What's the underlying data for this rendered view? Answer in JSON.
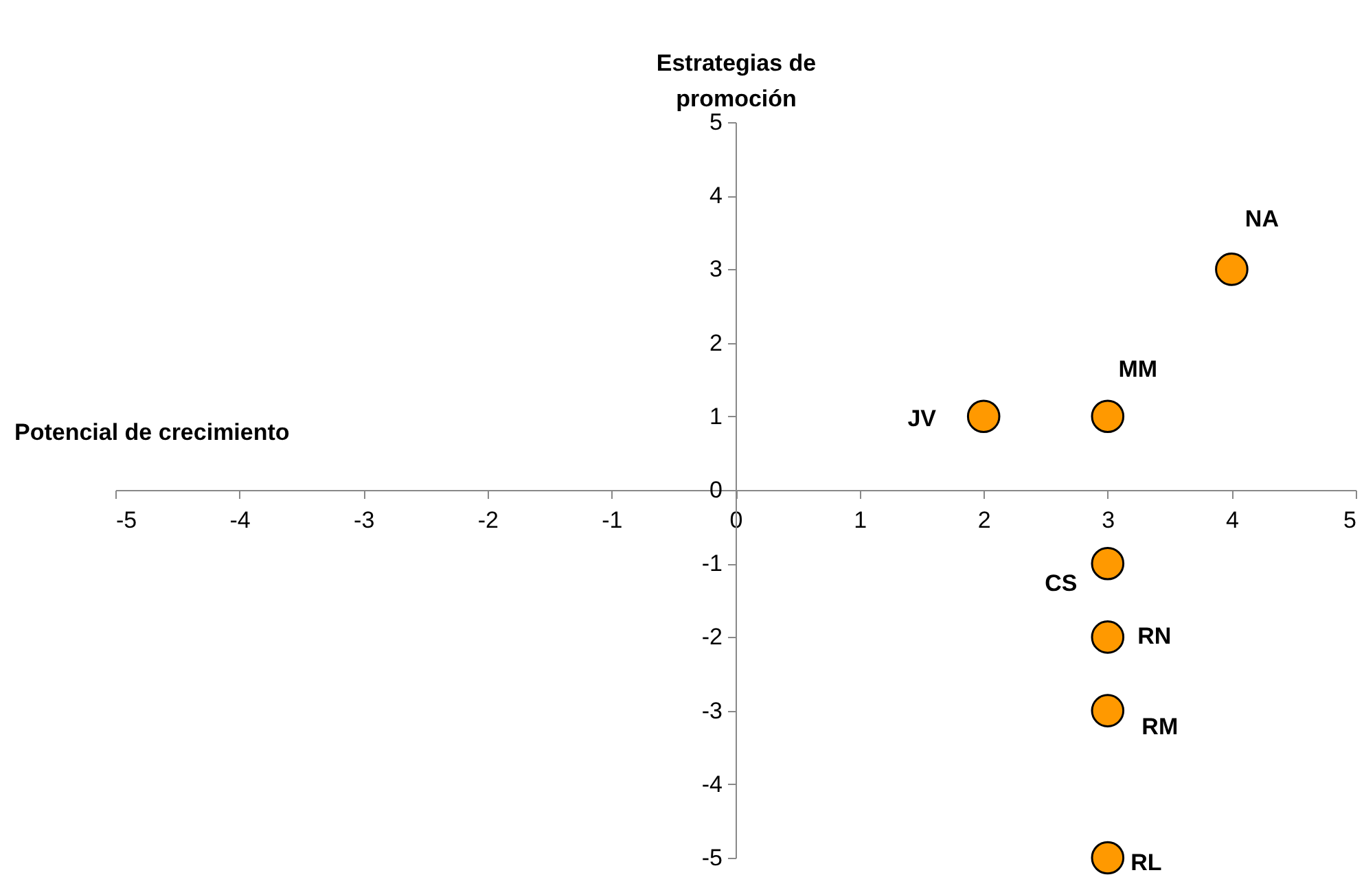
{
  "chart_data": {
    "type": "scatter",
    "xlabel": "Potencial de crecimiento",
    "ylabel": "Estrategias de promoción",
    "x": [
      4,
      3,
      2,
      3,
      3,
      3,
      3
    ],
    "series": [
      {
        "color": "#ff9900",
        "values": [
          3,
          1,
          1,
          -1,
          -2,
          -3,
          -5
        ]
      }
    ],
    "xlim": [
      -5,
      5
    ],
    "xticks": [
      -5,
      -4,
      -3,
      -2,
      -1,
      0,
      1,
      2,
      3,
      4,
      5
    ],
    "ylim": [
      -5,
      5
    ],
    "yticks": [
      -5,
      -4,
      -3,
      -2,
      -1,
      0,
      1,
      2,
      3,
      4,
      5
    ],
    "marker": "circle",
    "grid": false,
    "legend": false,
    "annotations": [
      {
        "text": "NA",
        "x": 4,
        "y": 3
      },
      {
        "text": "MM",
        "x": 3,
        "y": 1
      },
      {
        "text": "JV",
        "x": 2,
        "y": 1
      },
      {
        "text": "CS",
        "x": 3,
        "y": -1
      },
      {
        "text": "RN",
        "x": 3,
        "y": -2
      },
      {
        "text": "RM",
        "x": 3,
        "y": -3
      },
      {
        "text": "RL",
        "x": 3,
        "y": -5
      }
    ]
  }
}
